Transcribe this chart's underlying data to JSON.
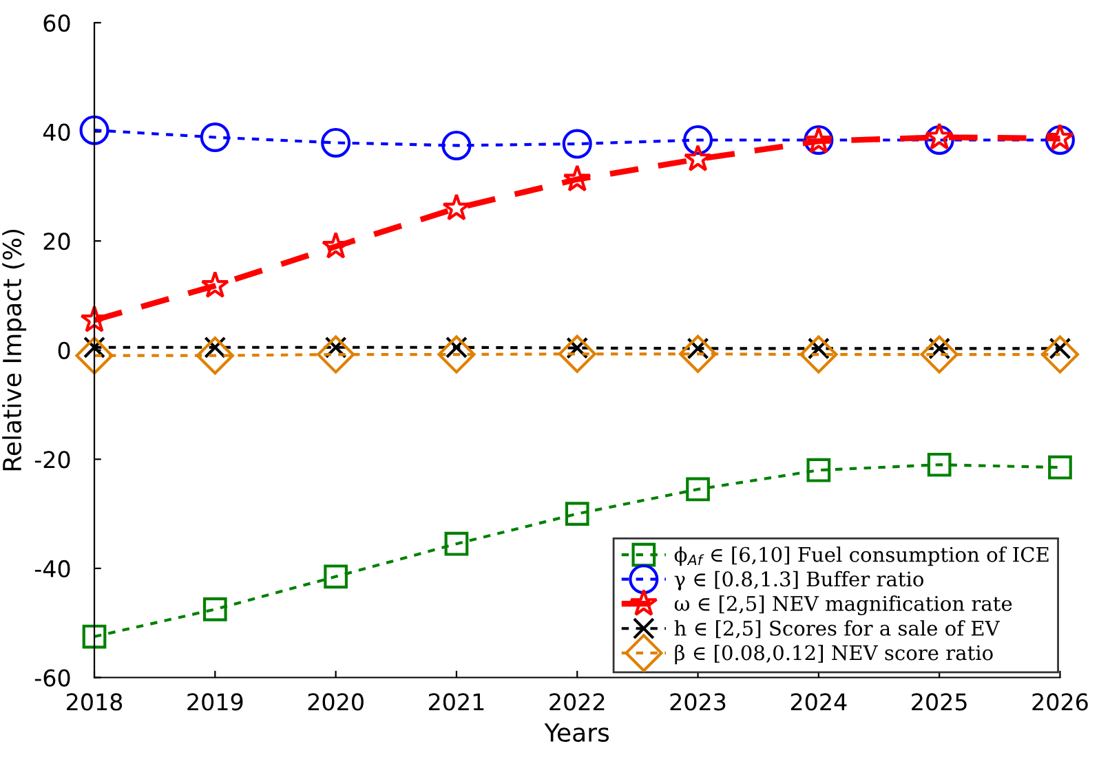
{
  "chart_data": {
    "type": "line",
    "xlabel": "Years",
    "ylabel": "Relative Impact (%)",
    "x": [
      2018,
      2019,
      2020,
      2021,
      2022,
      2023,
      2024,
      2025,
      2026
    ],
    "xlim": [
      2018,
      2026
    ],
    "xticks": [
      2018,
      2019,
      2020,
      2021,
      2022,
      2023,
      2024,
      2025,
      2026
    ],
    "ylim": [
      -60,
      60
    ],
    "yticks": [
      -60,
      -40,
      -20,
      0,
      20,
      40,
      60
    ],
    "grid": false,
    "legend": "bottom right",
    "series": [
      {
        "name": "ϕ$_{Af}$ ∈ [6,10] Fuel consumption of ICE",
        "color": "#008000",
        "marker": "square",
        "line_style": "dotted",
        "values": [
          -52.5,
          -47.5,
          -41.5,
          -35.5,
          -30,
          -25.5,
          -22,
          -21,
          -21.5
        ]
      },
      {
        "name": "γ ∈ [0.8,1.3] Buffer ratio",
        "color": "#0000ff",
        "marker": "circle",
        "line_style": "dotted",
        "values": [
          40.3,
          39,
          38,
          37.5,
          37.8,
          38.5,
          38.5,
          38.5,
          38.5
        ]
      },
      {
        "name": "ω ∈ [2,5] NEV magnification rate",
        "color": "#ff0000",
        "marker": "star",
        "line_style": "dashed",
        "values": [
          5.5,
          11.8,
          19,
          26,
          31.3,
          35,
          38.3,
          39,
          38.8
        ]
      },
      {
        "name": "h ∈ [2,5] Scores for a sale of EV",
        "color": "#000000",
        "marker": "cross",
        "line_style": "dotted",
        "values": [
          0.5,
          0.5,
          0.5,
          0.5,
          0.4,
          0.3,
          0.3,
          0.3,
          0.3
        ]
      },
      {
        "name": "β ∈ [0.08,0.12] NEV score ratio",
        "color": "#e08000",
        "marker": "diamond",
        "line_style": "dotted",
        "values": [
          -1,
          -1,
          -0.8,
          -0.8,
          -0.7,
          -0.7,
          -0.8,
          -0.8,
          -0.8
        ]
      }
    ]
  }
}
